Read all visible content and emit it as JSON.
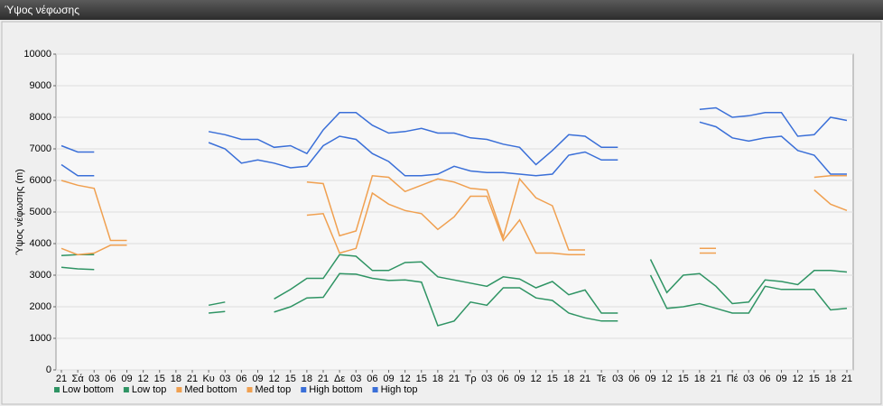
{
  "chart_data": {
    "type": "line",
    "title": "Ύψος νέφωσης",
    "ylabel": "Ύψος νέφωσης (m)",
    "categories": [
      "21",
      "Σά",
      "03",
      "06",
      "09",
      "12",
      "15",
      "18",
      "21",
      "Κυ",
      "03",
      "06",
      "09",
      "12",
      "15",
      "18",
      "21",
      "Δε",
      "03",
      "06",
      "09",
      "12",
      "15",
      "18",
      "21",
      "Τρ",
      "03",
      "06",
      "09",
      "12",
      "15",
      "18",
      "21",
      "Τε",
      "03",
      "06",
      "09",
      "12",
      "15",
      "18",
      "21",
      "Πέ",
      "03",
      "06",
      "09",
      "12",
      "15",
      "18",
      "21"
    ],
    "ylim": [
      0,
      10000
    ],
    "yticks": [
      0,
      1000,
      2000,
      3000,
      4000,
      5000,
      6000,
      7000,
      8000,
      9000,
      10000
    ],
    "grid": true,
    "legend": "bottom-left",
    "series": [
      {
        "name": "Low bottom",
        "color": "#2f9464",
        "values": [
          3250,
          3200,
          3180,
          null,
          null,
          null,
          null,
          null,
          null,
          1800,
          1850,
          null,
          null,
          1830,
          2000,
          2280,
          2300,
          3050,
          3030,
          2900,
          2830,
          2850,
          2780,
          1400,
          1550,
          2150,
          2050,
          2600,
          2600,
          2280,
          2200,
          1800,
          1650,
          1550,
          1550,
          null,
          3000,
          1950,
          2000,
          2100,
          1950,
          1800,
          1800,
          2650,
          2550,
          2550,
          2550,
          1900,
          1950
        ]
      },
      {
        "name": "Low top",
        "color": "#2f9464",
        "values": [
          3620,
          3650,
          3650,
          null,
          null,
          null,
          null,
          null,
          null,
          2050,
          2150,
          null,
          null,
          2250,
          2550,
          2900,
          2900,
          3650,
          3600,
          3150,
          3150,
          3400,
          3420,
          2950,
          2850,
          2750,
          2650,
          2950,
          2880,
          2600,
          2800,
          2380,
          2530,
          1800,
          1800,
          null,
          3500,
          2450,
          3000,
          3050,
          2650,
          2100,
          2150,
          2850,
          2800,
          2700,
          3150,
          3150,
          3100
        ]
      },
      {
        "name": "Med bottom",
        "color": "#f0a050",
        "values": [
          3850,
          3650,
          3700,
          3950,
          3950,
          null,
          null,
          null,
          null,
          null,
          null,
          null,
          null,
          null,
          null,
          4900,
          4950,
          3700,
          3850,
          5600,
          5250,
          5050,
          4950,
          4450,
          4850,
          5500,
          5500,
          4100,
          4750,
          3700,
          3700,
          3650,
          3650,
          null,
          null,
          null,
          null,
          null,
          null,
          3700,
          3700,
          null,
          null,
          null,
          null,
          null,
          5700,
          5250,
          5050
        ]
      },
      {
        "name": "Med top",
        "color": "#f0a050",
        "values": [
          6000,
          5850,
          5750,
          4100,
          4100,
          null,
          null,
          null,
          null,
          null,
          null,
          null,
          null,
          null,
          null,
          5950,
          5900,
          4250,
          4400,
          6150,
          6100,
          5650,
          5850,
          6050,
          5950,
          5750,
          5700,
          4200,
          6050,
          5450,
          5200,
          3800,
          3800,
          null,
          null,
          null,
          null,
          null,
          null,
          3850,
          3850,
          null,
          null,
          null,
          null,
          null,
          6100,
          6150,
          6150
        ]
      },
      {
        "name": "High bottom",
        "color": "#3a6fd8",
        "values": [
          6500,
          6150,
          6150,
          null,
          null,
          null,
          null,
          null,
          null,
          7200,
          7000,
          6550,
          6650,
          6550,
          6400,
          6450,
          7100,
          7400,
          7300,
          6850,
          6600,
          6150,
          6150,
          6200,
          6450,
          6300,
          6250,
          6250,
          6200,
          6150,
          6200,
          6800,
          6900,
          6650,
          6650,
          null,
          null,
          null,
          null,
          7850,
          7700,
          7350,
          7250,
          7350,
          7400,
          6950,
          6800,
          6200,
          6200
        ]
      },
      {
        "name": "High top",
        "color": "#3a6fd8",
        "values": [
          7100,
          6900,
          6900,
          null,
          null,
          null,
          null,
          null,
          null,
          7550,
          7450,
          7300,
          7300,
          7050,
          7100,
          6850,
          7600,
          8150,
          8150,
          7750,
          7500,
          7550,
          7650,
          7500,
          7500,
          7350,
          7300,
          7150,
          7050,
          6500,
          6950,
          7450,
          7400,
          7050,
          7050,
          null,
          null,
          null,
          null,
          8250,
          8300,
          8000,
          8050,
          8150,
          8150,
          7400,
          7450,
          8000,
          7900
        ]
      }
    ]
  }
}
